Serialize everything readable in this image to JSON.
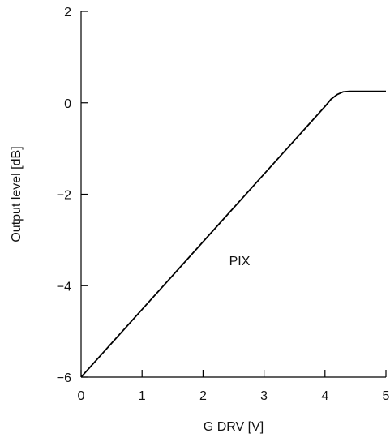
{
  "chart_data": {
    "type": "line",
    "title": "",
    "xlabel": "G DRV [V]",
    "ylabel": "Output level [dB]",
    "xlim": [
      0,
      5
    ],
    "ylim": [
      -6,
      2
    ],
    "x_ticks": [
      0,
      1,
      2,
      3,
      4,
      5
    ],
    "y_ticks": [
      2,
      0,
      -2,
      -4,
      -6
    ],
    "x_tick_labels": [
      "0",
      "1",
      "2",
      "3",
      "4",
      "5"
    ],
    "y_tick_labels": [
      "2",
      "0",
      "−2",
      "−4",
      "−6"
    ],
    "grid": false,
    "series": [
      {
        "color": "#000000",
        "x": [
          0,
          0.5,
          1,
          1.5,
          2,
          2.5,
          3,
          3.5,
          4,
          4.05,
          4.1,
          4.2,
          4.3,
          4.4,
          4.5,
          5
        ],
        "y": [
          -6,
          -5.26,
          -4.52,
          -3.78,
          -3.04,
          -2.3,
          -1.56,
          -0.82,
          -0.08,
          0.0,
          0.08,
          0.18,
          0.24,
          0.25,
          0.25,
          0.25
        ]
      }
    ],
    "annotations": [
      {
        "text": "PIX",
        "x": 2.6,
        "y": -3.55
      }
    ]
  }
}
